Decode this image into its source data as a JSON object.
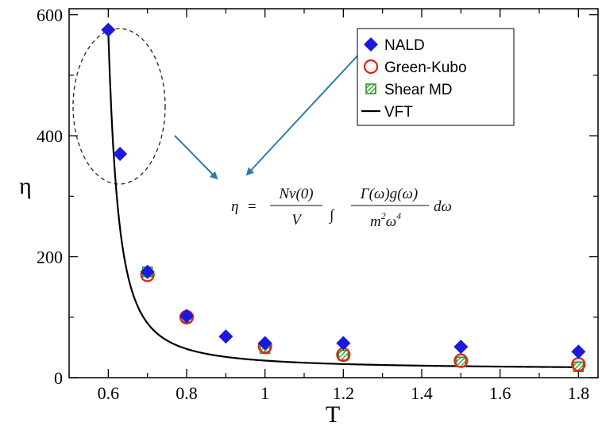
{
  "chart_data": {
    "type": "scatter",
    "xlabel": "T",
    "ylabel": "η",
    "xlim": [
      0.5,
      1.85
    ],
    "ylim": [
      0,
      610
    ],
    "xticks": [
      0.6,
      0.8,
      1,
      1.2,
      1.4,
      1.6,
      1.8
    ],
    "xtick_labels": [
      "0.6",
      "0.8",
      "1",
      "1.2",
      "1.4",
      "1.6",
      "1.8"
    ],
    "yticks": [
      0,
      200,
      400,
      600
    ],
    "ytick_labels": [
      "0",
      "200",
      "400",
      "600"
    ],
    "series": [
      {
        "name": "NALD",
        "marker": "diamond",
        "color": "#1a1adb",
        "x": [
          0.6,
          0.63,
          0.7,
          0.8,
          0.9,
          1.0,
          1.2,
          1.5,
          1.8
        ],
        "y": [
          575,
          370,
          175,
          102,
          68,
          57,
          57,
          51,
          43
        ]
      },
      {
        "name": "Green-Kubo",
        "marker": "circle",
        "color": "#e0201c",
        "x": [
          0.7,
          0.8,
          1.0,
          1.2,
          1.5,
          1.8
        ],
        "y": [
          170,
          100,
          52,
          38,
          28,
          22
        ]
      },
      {
        "name": "Shear MD",
        "marker": "hatched-square",
        "color": "#2a9a1f",
        "x": [
          0.7,
          0.8,
          1.0,
          1.2,
          1.5,
          1.8
        ],
        "y": [
          175,
          100,
          48,
          37,
          26,
          18
        ]
      },
      {
        "name": "VFT",
        "marker": "line",
        "color": "#000000",
        "function": "A*exp(B/(T-T0))",
        "A": 12.71,
        "B": 0.4035,
        "T0": 0.494,
        "x_range": [
          0.6,
          1.8
        ]
      }
    ],
    "legend_position": "top-right",
    "annotations": {
      "formula": {
        "lhs": "η",
        "eq": "=",
        "num": "Nν(0)",
        "den": "V",
        "integral": "∫",
        "int_num": "Γ(ω)g(ω)",
        "int_den_m": "m",
        "int_den_m_exp": "2",
        "int_den_w": "ω",
        "int_den_w_exp": "4",
        "tail": "dω"
      }
    }
  }
}
